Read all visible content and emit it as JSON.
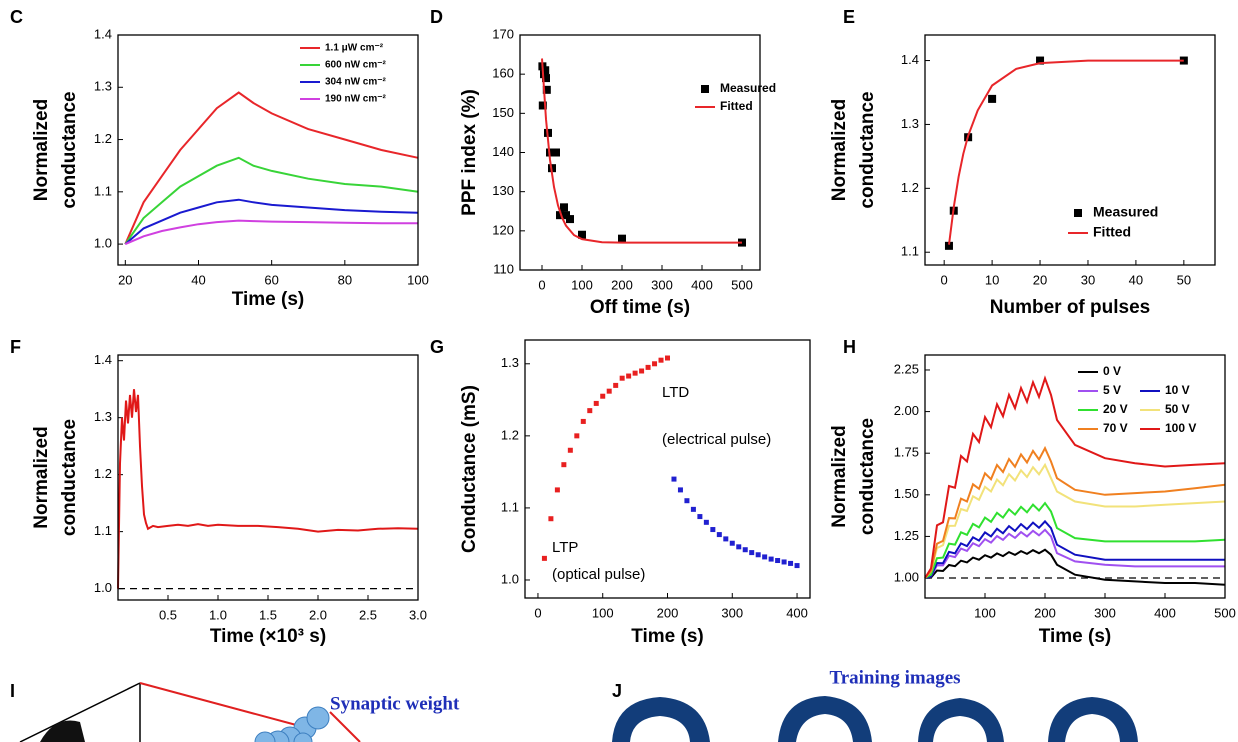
{
  "chart_data": [
    {
      "type": "line",
      "panel_label": "C",
      "ylabel": [
        "Normalized",
        "conductance"
      ],
      "xlabel": "Time (s)",
      "xlim": [
        18,
        100
      ],
      "ylim": [
        0.96,
        1.4
      ],
      "xticks": [
        20,
        40,
        60,
        80,
        100
      ],
      "yticks": [
        {
          "value": 1.0,
          "label": "1.0"
        },
        {
          "value": 1.1,
          "label": "1.1"
        },
        {
          "value": 1.2,
          "label": "1.2"
        },
        {
          "value": 1.3,
          "label": "1.3"
        },
        {
          "value": 1.4,
          "label": "1.4"
        }
      ],
      "legend": "upper right",
      "x": [
        20,
        25,
        30,
        35,
        40,
        45,
        51,
        55,
        60,
        70,
        80,
        90,
        100
      ],
      "series": [
        {
          "name": "1.1 μW cm⁻²",
          "color": "#e8262a",
          "style": "line",
          "values": [
            1.0,
            1.08,
            1.13,
            1.18,
            1.22,
            1.26,
            1.29,
            1.27,
            1.25,
            1.22,
            1.2,
            1.18,
            1.165
          ]
        },
        {
          "name": "600 nW cm⁻²",
          "color": "#38d438",
          "style": "line",
          "values": [
            1.0,
            1.05,
            1.08,
            1.11,
            1.13,
            1.15,
            1.165,
            1.15,
            1.14,
            1.125,
            1.115,
            1.11,
            1.1
          ]
        },
        {
          "name": "304 nW cm⁻²",
          "color": "#1a1ad0",
          "style": "line",
          "values": [
            1.0,
            1.03,
            1.045,
            1.06,
            1.07,
            1.08,
            1.085,
            1.08,
            1.075,
            1.07,
            1.065,
            1.062,
            1.06
          ]
        },
        {
          "name": "190 nW cm⁻²",
          "color": "#d040e0",
          "style": "line",
          "values": [
            1.0,
            1.015,
            1.025,
            1.032,
            1.038,
            1.042,
            1.045,
            1.044,
            1.043,
            1.042,
            1.041,
            1.04,
            1.04
          ]
        }
      ]
    },
    {
      "type": "scatter",
      "panel_label": "D",
      "ylabel": [
        "PPF index (%)"
      ],
      "xlabel": "Off time (s)",
      "xlim": [
        -55,
        545
      ],
      "ylim": [
        110,
        170
      ],
      "xticks": [
        0,
        100,
        200,
        300,
        400,
        500
      ],
      "yticks": [
        110,
        120,
        130,
        140,
        150,
        160,
        170
      ],
      "legend": "upper right",
      "series": [
        {
          "name": "Measured",
          "color": "#000000",
          "style": "marker",
          "x": [
            1,
            2,
            5,
            8,
            10,
            12,
            15,
            20,
            25,
            35,
            45,
            55,
            60,
            70,
            100,
            200,
            500
          ],
          "values": [
            162,
            152,
            160,
            161,
            159,
            156,
            145,
            140,
            136,
            140,
            124,
            126,
            124,
            123,
            119,
            118,
            117
          ]
        },
        {
          "name": "Fitted",
          "color": "#e8262a",
          "style": "line",
          "x": [
            0,
            10,
            20,
            30,
            40,
            50,
            60,
            80,
            100,
            150,
            200,
            300,
            400,
            500
          ],
          "values": [
            164,
            148.5,
            138.1,
            131.2,
            126.5,
            123.4,
            121.3,
            118.9,
            117.9,
            117.1,
            117,
            117,
            117,
            117
          ]
        }
      ]
    },
    {
      "type": "scatter",
      "panel_label": "E",
      "ylabel": [
        "Normalized",
        "conductance"
      ],
      "xlabel": "Number of pulses",
      "xlim": [
        -4,
        56.5
      ],
      "ylim": [
        1.08,
        1.44
      ],
      "xticks": [
        0,
        10,
        20,
        30,
        40,
        50
      ],
      "yticks": [
        {
          "value": 1.1,
          "label": "1.1"
        },
        {
          "value": 1.2,
          "label": "1.2"
        },
        {
          "value": 1.3,
          "label": "1.3"
        },
        {
          "value": 1.4,
          "label": "1.4"
        }
      ],
      "legend": "lower right",
      "series": [
        {
          "name": "Measured",
          "color": "#000000",
          "style": "marker",
          "x": [
            1,
            2,
            5,
            10,
            20,
            50
          ],
          "values": [
            1.11,
            1.165,
            1.28,
            1.34,
            1.4,
            1.4
          ]
        },
        {
          "name": "Fitted",
          "color": "#e8262a",
          "style": "line",
          "x": [
            1,
            2,
            3,
            4,
            5,
            7,
            10,
            15,
            20,
            30,
            40,
            50
          ],
          "values": [
            1.112,
            1.171,
            1.218,
            1.254,
            1.282,
            1.322,
            1.361,
            1.387,
            1.396,
            1.4,
            1.4,
            1.4
          ]
        }
      ]
    },
    {
      "type": "line",
      "panel_label": "F",
      "ylabel": [
        "Normalized",
        "conductance"
      ],
      "xlabel": "Time (×10³ s)",
      "xlim": [
        0,
        3.0
      ],
      "ylim": [
        0.98,
        1.41
      ],
      "xticks": [
        0.5,
        {
          "value": 1.0,
          "label": "1.0"
        },
        1.5,
        {
          "value": 2.0,
          "label": "2.0"
        },
        2.5,
        {
          "value": 3.0,
          "label": "3.0"
        }
      ],
      "yticks": [
        {
          "value": 1.0,
          "label": "1.0"
        },
        {
          "value": 1.1,
          "label": "1.1"
        },
        {
          "value": 1.2,
          "label": "1.2"
        },
        {
          "value": 1.3,
          "label": "1.3"
        },
        {
          "value": 1.4,
          "label": "1.4"
        }
      ],
      "reference_line": 1,
      "series": [
        {
          "color": "#e01818",
          "style": "line",
          "x": [
            0,
            0.02,
            0.04,
            0.06,
            0.08,
            0.1,
            0.12,
            0.14,
            0.16,
            0.18,
            0.2,
            0.22,
            0.24,
            0.26,
            0.28,
            0.3,
            0.35,
            0.4,
            0.5,
            0.6,
            0.7,
            0.8,
            0.9,
            1.0,
            1.2,
            1.4,
            1.6,
            1.8,
            2.0,
            2.2,
            2.4,
            2.6,
            2.8,
            3.0
          ],
          "values": [
            1.0,
            1.22,
            1.3,
            1.26,
            1.33,
            1.29,
            1.34,
            1.3,
            1.35,
            1.31,
            1.34,
            1.25,
            1.18,
            1.13,
            1.115,
            1.105,
            1.11,
            1.108,
            1.11,
            1.112,
            1.11,
            1.113,
            1.11,
            1.112,
            1.11,
            1.11,
            1.108,
            1.105,
            1.1,
            1.103,
            1.102,
            1.105,
            1.106,
            1.105
          ]
        }
      ]
    },
    {
      "type": "scatter",
      "panel_label": "G",
      "ylabel": [
        "Conductance (mS)"
      ],
      "xlabel": "Time (s)",
      "xlim": [
        -20,
        420
      ],
      "ylim": [
        0.975,
        1.333
      ],
      "xticks": [
        0,
        100,
        200,
        300,
        400
      ],
      "yticks": [
        {
          "value": 1.0,
          "label": "1.0"
        },
        {
          "value": 1.1,
          "label": "1.1"
        },
        {
          "value": 1.2,
          "label": "1.2"
        },
        {
          "value": 1.3,
          "label": "1.3"
        }
      ],
      "annotations": [
        "LTD",
        "(electrical pulse)",
        "LTP",
        "(optical pulse)"
      ],
      "series": [
        {
          "color": "#e82020",
          "style": "marker",
          "x": [
            10,
            20,
            30,
            40,
            50,
            60,
            70,
            80,
            90,
            100,
            110,
            120,
            130,
            140,
            150,
            160,
            170,
            180,
            190,
            200
          ],
          "values": [
            1.03,
            1.085,
            1.125,
            1.16,
            1.18,
            1.2,
            1.22,
            1.235,
            1.245,
            1.255,
            1.262,
            1.27,
            1.28,
            1.283,
            1.287,
            1.29,
            1.295,
            1.3,
            1.305,
            1.308
          ]
        },
        {
          "color": "#2020d0",
          "style": "marker",
          "x": [
            210,
            220,
            230,
            240,
            250,
            260,
            270,
            280,
            290,
            300,
            310,
            320,
            330,
            340,
            350,
            360,
            370,
            380,
            390,
            400
          ],
          "values": [
            1.14,
            1.125,
            1.11,
            1.098,
            1.088,
            1.08,
            1.07,
            1.063,
            1.057,
            1.051,
            1.046,
            1.042,
            1.038,
            1.035,
            1.032,
            1.029,
            1.027,
            1.025,
            1.023,
            1.02
          ]
        }
      ]
    },
    {
      "type": "line",
      "panel_label": "H",
      "ylabel": [
        "Normalized",
        "conductance"
      ],
      "xlabel": "Time (s)",
      "xlim": [
        0,
        500
      ],
      "ylim": [
        0.88,
        2.34
      ],
      "xticks": [
        100,
        200,
        300,
        400,
        500
      ],
      "yticks": [
        {
          "value": 1.0,
          "label": "1.00"
        },
        {
          "value": 1.25,
          "label": "1.25"
        },
        {
          "value": 1.5,
          "label": "1.50"
        },
        {
          "value": 1.75,
          "label": "1.75"
        },
        {
          "value": 2.0,
          "label": "2.00"
        },
        {
          "value": 2.25,
          "label": "2.25"
        }
      ],
      "reference_line": 1,
      "legend": "upper right",
      "x": [
        0,
        10,
        20,
        30,
        40,
        50,
        60,
        70,
        80,
        90,
        100,
        110,
        120,
        130,
        140,
        150,
        160,
        170,
        180,
        190,
        200,
        210,
        220,
        250,
        300,
        350,
        400,
        450,
        500
      ],
      "series": [
        {
          "name": "0 V",
          "color": "#000000",
          "style": "line",
          "values": [
            1.0,
            1.003,
            1.045,
            1.042,
            1.078,
            1.071,
            1.104,
            1.094,
            1.123,
            1.11,
            1.137,
            1.123,
            1.148,
            1.132,
            1.156,
            1.139,
            1.162,
            1.145,
            1.167,
            1.149,
            1.17,
            1.14,
            1.08,
            1.02,
            0.99,
            0.98,
            0.97,
            0.97,
            0.96
          ]
        },
        {
          "name": "5 V",
          "color": "#a050f0",
          "style": "line",
          "values": [
            1.0,
            1.009,
            1.077,
            1.076,
            1.134,
            1.126,
            1.177,
            1.163,
            1.209,
            1.192,
            1.234,
            1.213,
            1.252,
            1.229,
            1.266,
            1.241,
            1.276,
            1.25,
            1.284,
            1.257,
            1.29,
            1.25,
            1.15,
            1.1,
            1.08,
            1.07,
            1.07,
            1.07,
            1.07
          ]
        },
        {
          "name": "10 V",
          "color": "#1010c0",
          "style": "line",
          "values": [
            1.0,
            1.01,
            1.09,
            1.089,
            1.157,
            1.148,
            1.208,
            1.192,
            1.245,
            1.225,
            1.274,
            1.25,
            1.296,
            1.269,
            1.312,
            1.283,
            1.324,
            1.294,
            1.333,
            1.302,
            1.34,
            1.3,
            1.2,
            1.14,
            1.11,
            1.11,
            1.11,
            1.11,
            1.11
          ]
        },
        {
          "name": "20 V",
          "color": "#30e030",
          "style": "line",
          "values": [
            1.0,
            1.02,
            1.119,
            1.123,
            1.207,
            1.201,
            1.275,
            1.26,
            1.325,
            1.304,
            1.363,
            1.338,
            1.392,
            1.363,
            1.413,
            1.381,
            1.428,
            1.395,
            1.441,
            1.406,
            1.45,
            1.4,
            1.3,
            1.24,
            1.22,
            1.22,
            1.22,
            1.22,
            1.23
          ]
        },
        {
          "name": "50 V",
          "color": "#f2e27a",
          "style": "line",
          "values": [
            1.0,
            1.04,
            1.18,
            1.197,
            1.313,
            1.314,
            1.415,
            1.403,
            1.491,
            1.47,
            1.548,
            1.52,
            1.592,
            1.558,
            1.624,
            1.586,
            1.647,
            1.607,
            1.666,
            1.623,
            1.68,
            1.6,
            1.52,
            1.46,
            1.43,
            1.43,
            1.44,
            1.45,
            1.46
          ]
        },
        {
          "name": "70 V",
          "color": "#f08020",
          "style": "line",
          "values": [
            1.0,
            1.043,
            1.206,
            1.223,
            1.36,
            1.358,
            1.477,
            1.46,
            1.563,
            1.536,
            1.629,
            1.594,
            1.679,
            1.637,
            1.715,
            1.669,
            1.743,
            1.694,
            1.764,
            1.712,
            1.78,
            1.7,
            1.6,
            1.53,
            1.5,
            1.51,
            1.52,
            1.54,
            1.56
          ]
        },
        {
          "name": "100 V",
          "color": "#e01818",
          "style": "line",
          "values": [
            1.0,
            1.058,
            1.317,
            1.335,
            1.553,
            1.543,
            1.733,
            1.7,
            1.866,
            1.817,
            1.967,
            1.906,
            2.044,
            1.972,
            2.1,
            2.021,
            2.142,
            2.059,
            2.176,
            2.088,
            2.2,
            2.1,
            1.95,
            1.8,
            1.72,
            1.69,
            1.67,
            1.68,
            1.69
          ]
        }
      ]
    }
  ],
  "panel_i": {
    "label": "I",
    "annotation": "Synaptic weight"
  },
  "panel_j": {
    "label": "J",
    "title": "Training images"
  }
}
